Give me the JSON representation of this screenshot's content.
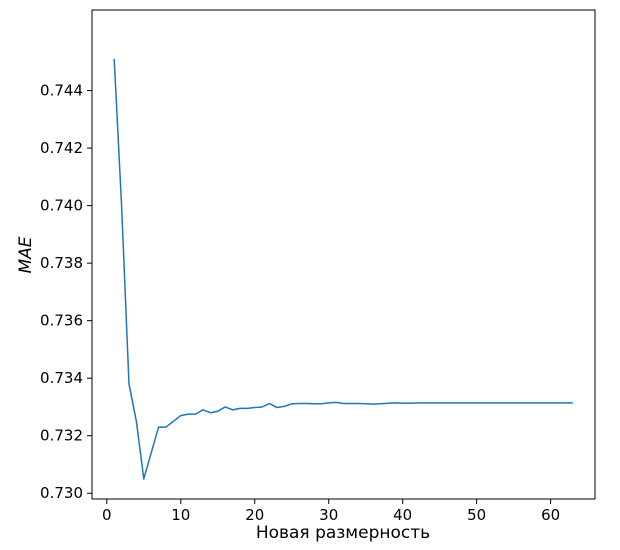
{
  "chart_data": {
    "type": "line",
    "title": "",
    "xlabel": "Новая размерность",
    "ylabel": "MAE",
    "xlim": [
      -2,
      66
    ],
    "ylim": [
      0.7298,
      0.7468
    ],
    "xticks": [
      0,
      10,
      20,
      30,
      40,
      50,
      60
    ],
    "yticks": [
      0.73,
      0.732,
      0.734,
      0.736,
      0.738,
      0.74,
      0.742,
      0.744
    ],
    "ytick_labels": [
      "0.730",
      "0.732",
      "0.734",
      "0.736",
      "0.738",
      "0.740",
      "0.742",
      "0.744"
    ],
    "grid": false,
    "series": [
      {
        "color": "#1f77b4",
        "x": [
          1,
          2,
          3,
          4,
          5,
          6,
          7,
          8,
          9,
          10,
          11,
          12,
          13,
          14,
          15,
          16,
          17,
          18,
          19,
          20,
          21,
          22,
          23,
          24,
          25,
          26,
          27,
          28,
          29,
          30,
          31,
          32,
          33,
          34,
          35,
          36,
          37,
          38,
          39,
          40,
          41,
          42,
          43,
          44,
          45,
          46,
          47,
          48,
          49,
          50,
          51,
          52,
          53,
          54,
          55,
          56,
          57,
          58,
          59,
          60,
          61,
          62,
          63
        ],
        "y": [
          0.7451,
          0.74,
          0.7338,
          0.7325,
          0.7305,
          0.7314,
          0.7323,
          0.7323,
          0.7325,
          0.7327,
          0.73275,
          0.73275,
          0.7329,
          0.7328,
          0.73285,
          0.733,
          0.7329,
          0.73295,
          0.73295,
          0.73298,
          0.733,
          0.73312,
          0.73298,
          0.73302,
          0.73311,
          0.73312,
          0.73312,
          0.73311,
          0.73311,
          0.73314,
          0.73316,
          0.73312,
          0.73312,
          0.73312,
          0.73311,
          0.7331,
          0.73311,
          0.73313,
          0.73314,
          0.73313,
          0.73313,
          0.73314,
          0.73314,
          0.73314,
          0.73314,
          0.73314,
          0.73314,
          0.73314,
          0.73314,
          0.73314,
          0.73314,
          0.73314,
          0.73314,
          0.73314,
          0.73314,
          0.73314,
          0.73314,
          0.73314,
          0.73314,
          0.73314,
          0.73314,
          0.73314,
          0.73314
        ]
      }
    ]
  }
}
